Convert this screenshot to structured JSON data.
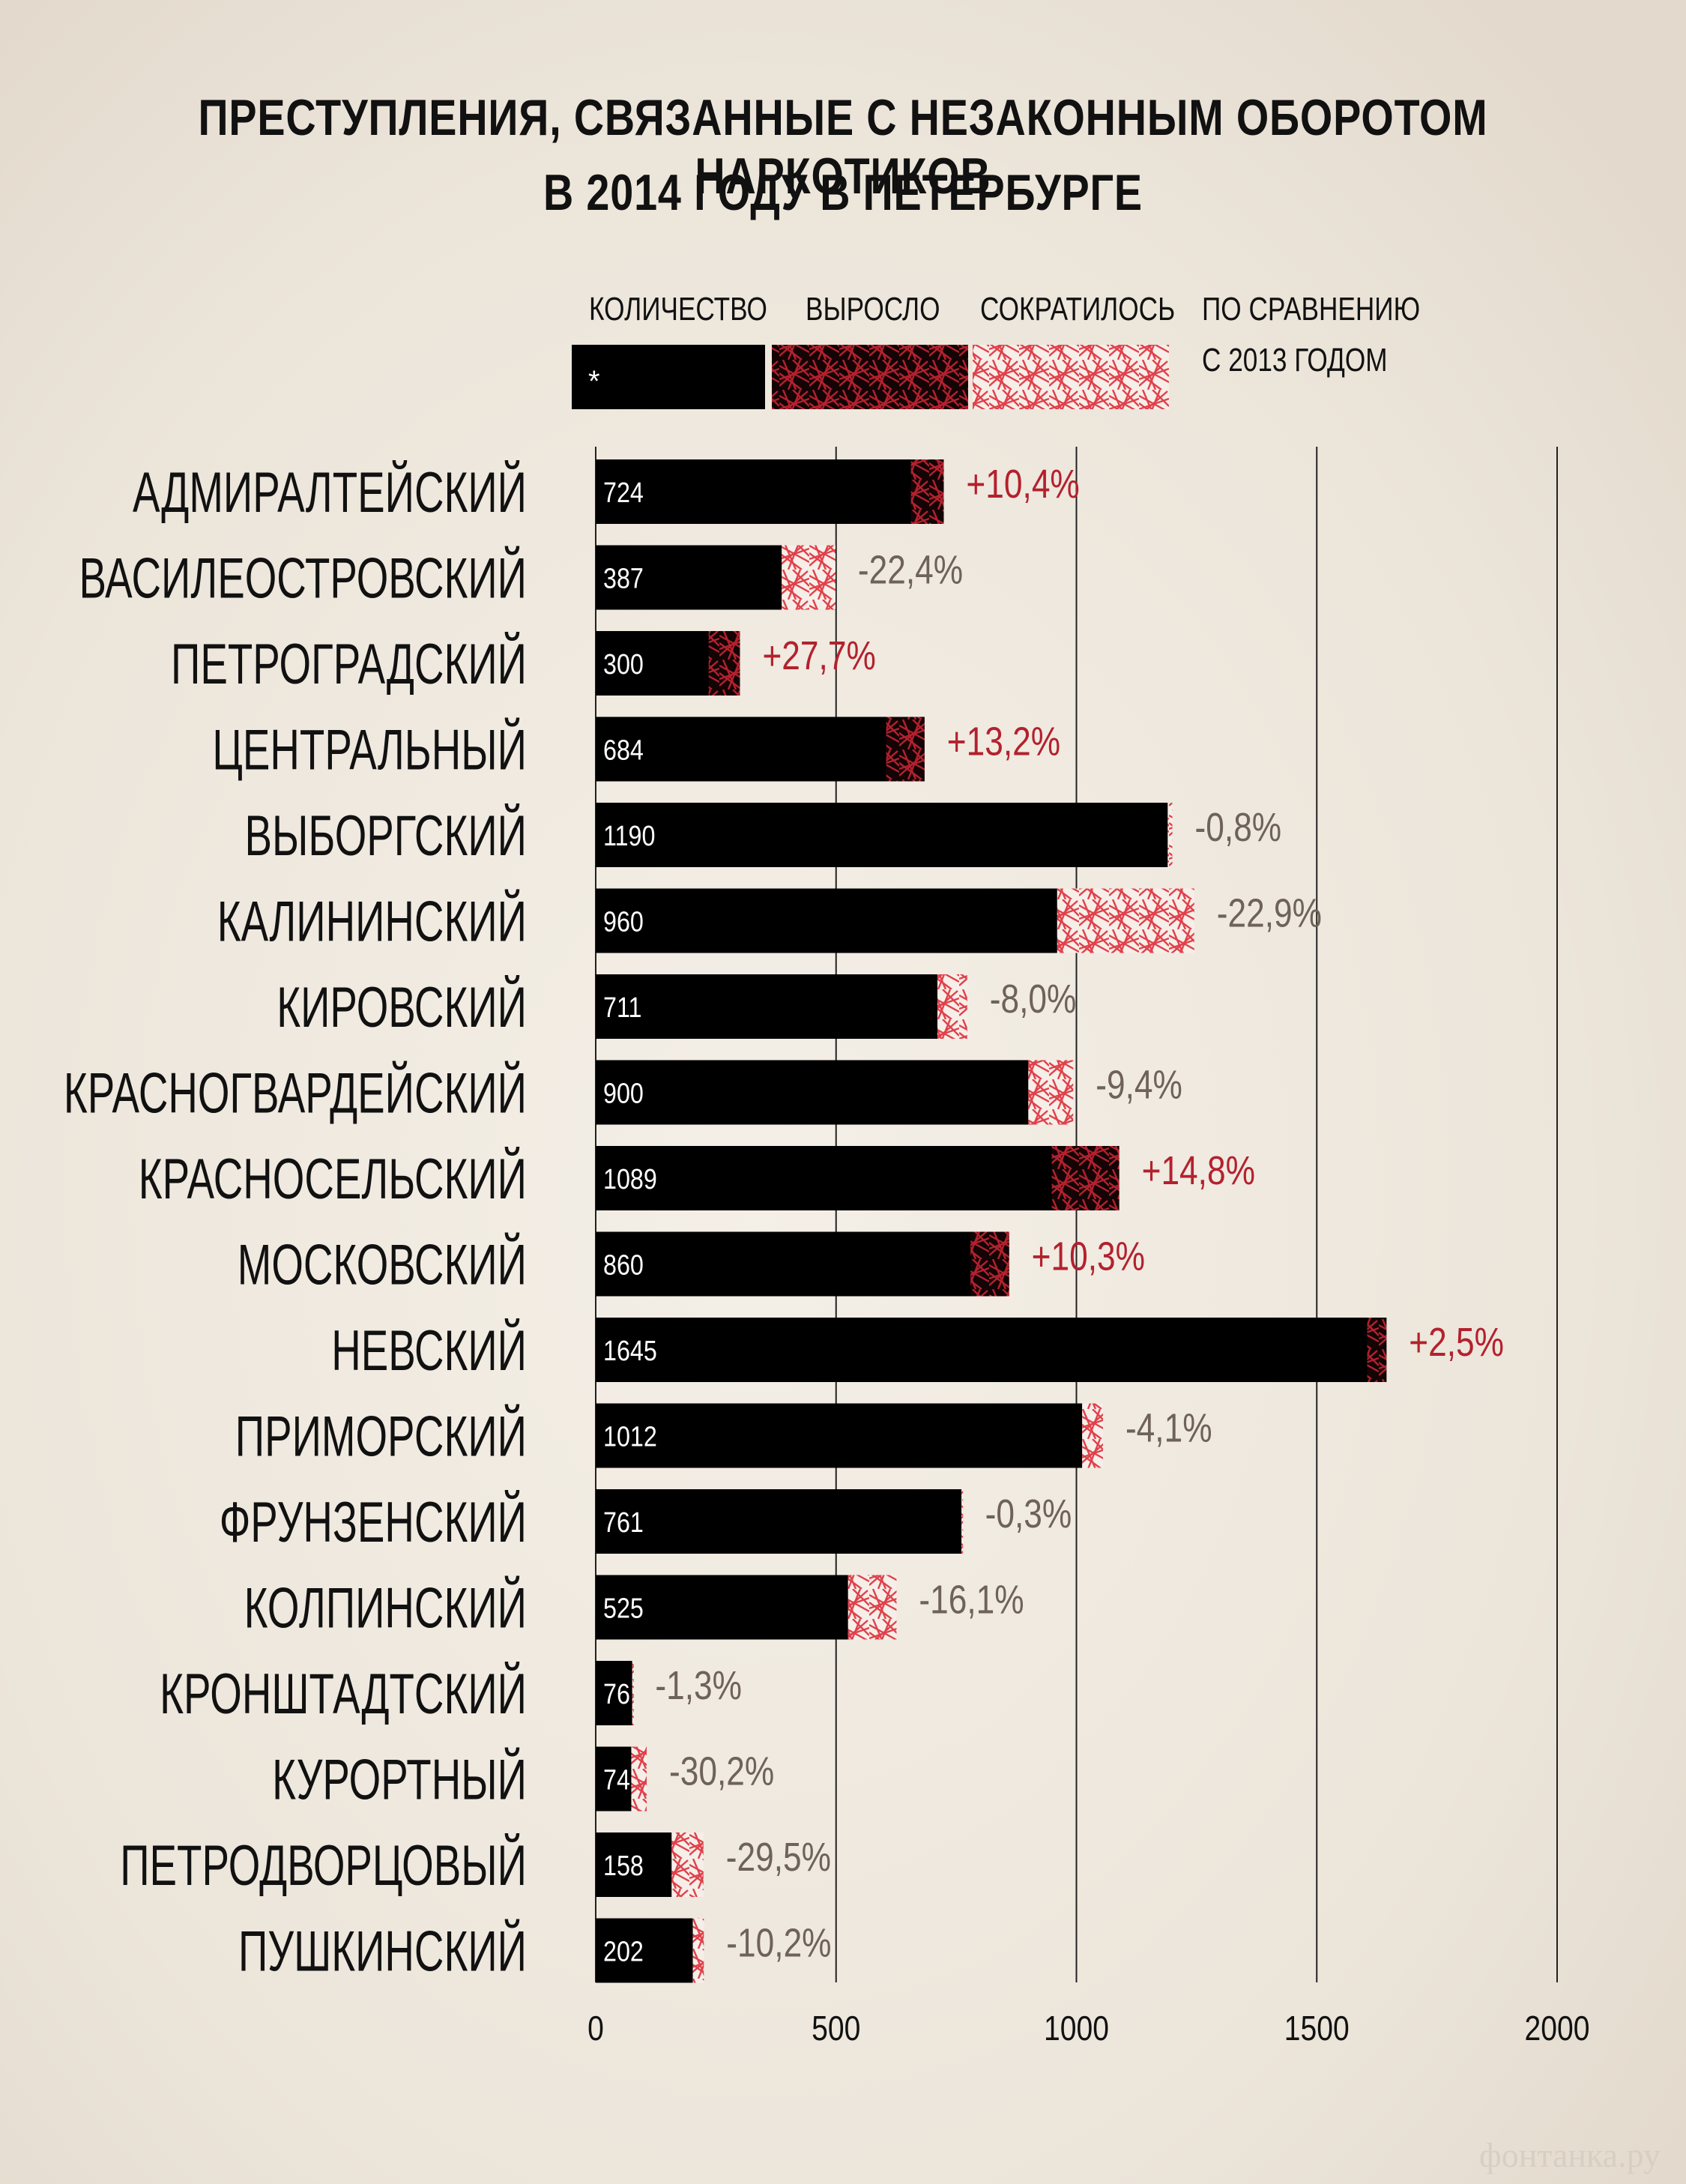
{
  "title_line1": "ПРЕСТУПЛЕНИЯ, СВЯЗАННЫЕ С НЕЗАКОННЫМ ОБОРОТОМ НАРКОТИКОВ",
  "title_line2": "В 2014 ГОДУ В ПЕТЕРБУРГЕ",
  "legend": {
    "count_label": "КОЛИЧЕСТВО",
    "count_marker": "*",
    "grew_label": "ВЫРОСЛО",
    "fell_label": "СОКРАТИЛОСЬ",
    "compare_line1": "ПО СРАВНЕНИЮ",
    "compare_line2": "С 2013 ГОДОМ"
  },
  "footer": "фонтанка.ру",
  "colors": {
    "bar": "#000000",
    "grew": "#b3212e",
    "fell": "#e0414b",
    "grew_text": "#b3212e",
    "fell_text": "#6e6259",
    "background": "#efe9df"
  },
  "chart_data": {
    "type": "bar",
    "orientation": "horizontal",
    "xlim": [
      0,
      2000
    ],
    "xticks": [
      0,
      500,
      1000,
      1500,
      2000
    ],
    "grid": true,
    "categories": [
      "АДМИРАЛТЕЙСКИЙ",
      "ВАСИЛЕОСТРОВСКИЙ",
      "ПЕТРОГРАДСКИЙ",
      "ЦЕНТРАЛЬНЫЙ",
      "ВЫБОРГСКИЙ",
      "КАЛИНИНСКИЙ",
      "КИРОВСКИЙ",
      "КРАСНОГВАРДЕЙСКИЙ",
      "КРАСНОСЕЛЬСКИЙ",
      "МОСКОВСКИЙ",
      "НЕВСКИЙ",
      "ПРИМОРСКИЙ",
      "ФРУНЗЕНСКИЙ",
      "КОЛПИНСКИЙ",
      "КРОНШТАДТСКИЙ",
      "КУРОРТНЫЙ",
      "ПЕТРОДВОРЦОВЫЙ",
      "ПУШКИНСКИЙ"
    ],
    "values": [
      724,
      387,
      300,
      684,
      1190,
      960,
      711,
      900,
      1089,
      860,
      1645,
      1012,
      761,
      525,
      76,
      74,
      158,
      202
    ],
    "change_labels": [
      "+10,4%",
      "-22,4%",
      "+27,7%",
      "+13,2%",
      "-0,8%",
      "-22,9%",
      "-8,0%",
      "-9,4%",
      "+14,8%",
      "+10,3%",
      "+2,5%",
      "-4,1%",
      "-0,3%",
      "-16,1%",
      "-1,3%",
      "-30,2%",
      "-29,5%",
      "-10,2%"
    ],
    "change_pct": [
      10.4,
      -22.4,
      27.7,
      13.2,
      -0.8,
      -22.9,
      -8.0,
      -9.4,
      14.8,
      10.3,
      2.5,
      -4.1,
      -0.3,
      -16.1,
      -1.3,
      -30.2,
      -29.5,
      -10.2
    ]
  }
}
